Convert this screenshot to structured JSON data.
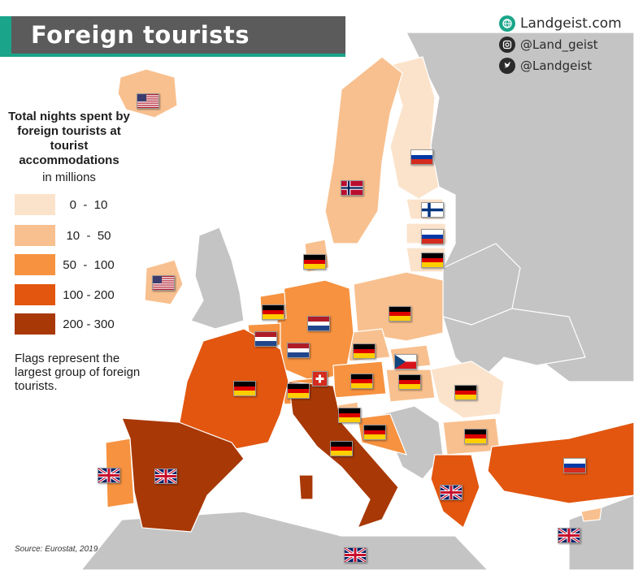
{
  "title": "Foreign tourists",
  "branding": {
    "website": "Landgeist.com",
    "instagram": "@Land_geist",
    "twitter": "@Landgeist"
  },
  "legend": {
    "title": "Total nights spent by foreign tourists at tourist accommodations",
    "subtitle": "in millions",
    "items": [
      {
        "label": "0  -  10",
        "color": "#fbe3cb"
      },
      {
        "label": "10  -  50",
        "color": "#f8c08f"
      },
      {
        "label": "50  -  100",
        "color": "#f69240"
      },
      {
        "label": "100 - 200",
        "color": "#e2560f"
      },
      {
        "label": "200 - 300",
        "color": "#a83806"
      }
    ]
  },
  "note": "Flags represent the largest group of foreign tourists.",
  "source": "Source: Eurostat, 2019",
  "colors": {
    "no_data": "#c4c4c4",
    "sea": "#ffffff",
    "title_bar": "#5b5b5b",
    "accent": "#1aa58a"
  },
  "flags": [
    {
      "country": "Iceland",
      "flag": "usa"
    },
    {
      "country": "Norway",
      "flag": "norway"
    },
    {
      "country": "Sweden",
      "flag": "russia"
    },
    {
      "country": "Estonia",
      "flag": "finland"
    },
    {
      "country": "Latvia",
      "flag": "russia"
    },
    {
      "country": "Lithuania",
      "flag": "germany"
    },
    {
      "country": "Denmark",
      "flag": "germany"
    },
    {
      "country": "Ireland",
      "flag": "usa"
    },
    {
      "country": "Netherlands",
      "flag": "germany"
    },
    {
      "country": "Germany",
      "flag": "netherlands"
    },
    {
      "country": "Belgium",
      "flag": "netherlands"
    },
    {
      "country": "Luxembourg",
      "flag": "netherlands"
    },
    {
      "country": "Poland",
      "flag": "germany"
    },
    {
      "country": "Czechia",
      "flag": "germany"
    },
    {
      "country": "Slovakia",
      "flag": "czechia"
    },
    {
      "country": "Austria",
      "flag": "germany"
    },
    {
      "country": "Hungary",
      "flag": "germany"
    },
    {
      "country": "Switzerland",
      "flag": "germany"
    },
    {
      "country": "Liechtenstein",
      "flag": "switzerland"
    },
    {
      "country": "France",
      "flag": "germany"
    },
    {
      "country": "Slovenia",
      "flag": "germany"
    },
    {
      "country": "Croatia",
      "flag": "germany"
    },
    {
      "country": "Romania",
      "flag": "germany"
    },
    {
      "country": "Bulgaria",
      "flag": "germany"
    },
    {
      "country": "Italy",
      "flag": "germany"
    },
    {
      "country": "Portugal",
      "flag": "uk"
    },
    {
      "country": "Spain",
      "flag": "uk"
    },
    {
      "country": "Greece",
      "flag": "uk"
    },
    {
      "country": "Turkey",
      "flag": "russia"
    },
    {
      "country": "Cyprus",
      "flag": "uk"
    },
    {
      "country": "Malta",
      "flag": "uk"
    }
  ]
}
